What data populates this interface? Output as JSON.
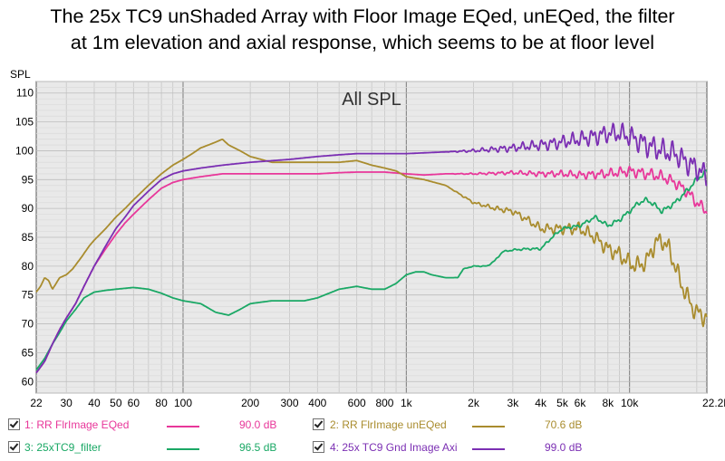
{
  "title": {
    "line1": "The 25x TC9 unShaded Array with Floor Image EQed, unEQed, the filter",
    "line2": "at 1m elevation and axial response, which seems to be at floor level"
  },
  "chart_data": {
    "type": "line",
    "overlay_title": "All SPL",
    "ylabel": "SPL",
    "xlabel": "",
    "x_scale": "log",
    "xlim": [
      22,
      22200
    ],
    "ylim": [
      58,
      112
    ],
    "grid": true,
    "y_ticks": [
      60,
      65,
      70,
      75,
      80,
      85,
      90,
      95,
      100,
      105,
      110
    ],
    "x_ticks": [
      {
        "v": 22,
        "label": "22"
      },
      {
        "v": 30,
        "label": "30"
      },
      {
        "v": 40,
        "label": "40"
      },
      {
        "v": 50,
        "label": "50"
      },
      {
        "v": 60,
        "label": "60"
      },
      {
        "v": 80,
        "label": "80"
      },
      {
        "v": 100,
        "label": "100"
      },
      {
        "v": 200,
        "label": "200"
      },
      {
        "v": 300,
        "label": "300"
      },
      {
        "v": 400,
        "label": "400"
      },
      {
        "v": 600,
        "label": "600"
      },
      {
        "v": 800,
        "label": "800"
      },
      {
        "v": 1000,
        "label": "1k"
      },
      {
        "v": 2000,
        "label": "2k"
      },
      {
        "v": 3000,
        "label": "3k"
      },
      {
        "v": 4000,
        "label": "4k"
      },
      {
        "v": 5000,
        "label": "5k"
      },
      {
        "v": 6000,
        "label": "6k"
      },
      {
        "v": 8000,
        "label": "8k"
      },
      {
        "v": 10000,
        "label": "10k"
      },
      {
        "v": 22200,
        "label": "22.2kHz"
      }
    ],
    "series": [
      {
        "name": "1: RR FlrImage EQed",
        "value_label": "90.0 dB",
        "color": "#e8379a",
        "ripple": 0.8,
        "points": [
          [
            22,
            61.5
          ],
          [
            24,
            63.5
          ],
          [
            26,
            66.5
          ],
          [
            28,
            69
          ],
          [
            30,
            71
          ],
          [
            33,
            73.5
          ],
          [
            36,
            76.5
          ],
          [
            40,
            80
          ],
          [
            45,
            83
          ],
          [
            50,
            85.5
          ],
          [
            55,
            87.5
          ],
          [
            60,
            89
          ],
          [
            70,
            91.5
          ],
          [
            80,
            93.5
          ],
          [
            90,
            94.5
          ],
          [
            100,
            95
          ],
          [
            120,
            95.5
          ],
          [
            150,
            96
          ],
          [
            200,
            96
          ],
          [
            300,
            96
          ],
          [
            400,
            96
          ],
          [
            500,
            96.2
          ],
          [
            600,
            96.3
          ],
          [
            800,
            96.3
          ],
          [
            1000,
            96
          ],
          [
            1200,
            95.8
          ],
          [
            1500,
            96
          ],
          [
            2000,
            96
          ],
          [
            3000,
            96.2
          ],
          [
            4000,
            96
          ],
          [
            5000,
            96
          ],
          [
            6000,
            95.8
          ],
          [
            8000,
            96
          ],
          [
            10000,
            96.5
          ],
          [
            12000,
            96
          ],
          [
            14000,
            95.5
          ],
          [
            16000,
            94.5
          ],
          [
            18000,
            93
          ],
          [
            20000,
            91
          ],
          [
            22200,
            89.5
          ]
        ]
      },
      {
        "name": "2: RR FlrImage unEQed",
        "value_label": "70.6 dB",
        "color": "#a98c2e",
        "ripple": 1.3,
        "points": [
          [
            22,
            75.5
          ],
          [
            23,
            76.5
          ],
          [
            24,
            78
          ],
          [
            25,
            77.5
          ],
          [
            26,
            76
          ],
          [
            27,
            77
          ],
          [
            28,
            78
          ],
          [
            30,
            78.5
          ],
          [
            32,
            79.5
          ],
          [
            35,
            81.5
          ],
          [
            38,
            83.5
          ],
          [
            40,
            84.5
          ],
          [
            45,
            86.5
          ],
          [
            50,
            88.5
          ],
          [
            55,
            90
          ],
          [
            60,
            91.5
          ],
          [
            70,
            94
          ],
          [
            80,
            96
          ],
          [
            90,
            97.5
          ],
          [
            100,
            98.5
          ],
          [
            110,
            99.5
          ],
          [
            120,
            100.5
          ],
          [
            130,
            101
          ],
          [
            140,
            101.5
          ],
          [
            150,
            102
          ],
          [
            160,
            101
          ],
          [
            180,
            100
          ],
          [
            200,
            99
          ],
          [
            250,
            98
          ],
          [
            300,
            98
          ],
          [
            400,
            98
          ],
          [
            500,
            98
          ],
          [
            600,
            98.3
          ],
          [
            700,
            97.5
          ],
          [
            800,
            97
          ],
          [
            900,
            96.5
          ],
          [
            1000,
            95.5
          ],
          [
            1200,
            95
          ],
          [
            1500,
            94
          ],
          [
            2000,
            91
          ],
          [
            2500,
            90
          ],
          [
            3000,
            89.5
          ],
          [
            3500,
            88
          ],
          [
            4000,
            86.5
          ],
          [
            5000,
            86.5
          ],
          [
            6000,
            86.5
          ],
          [
            7000,
            85
          ],
          [
            8000,
            83
          ],
          [
            9000,
            82
          ],
          [
            10000,
            80.5
          ],
          [
            11000,
            80
          ],
          [
            12000,
            81
          ],
          [
            13000,
            84
          ],
          [
            14000,
            84.5
          ],
          [
            15000,
            83
          ],
          [
            16000,
            80
          ],
          [
            17000,
            77
          ],
          [
            18000,
            75
          ],
          [
            19000,
            73
          ],
          [
            20000,
            72
          ],
          [
            22200,
            71
          ]
        ]
      },
      {
        "name": "3: 25xTC9_filter",
        "value_label": "96.5 dB",
        "color": "#1aa865",
        "ripple": 0.35,
        "points": [
          [
            22,
            62
          ],
          [
            24,
            64
          ],
          [
            26,
            66.5
          ],
          [
            28,
            68.5
          ],
          [
            30,
            70.5
          ],
          [
            33,
            72.5
          ],
          [
            36,
            74.5
          ],
          [
            40,
            75.5
          ],
          [
            45,
            75.8
          ],
          [
            50,
            76
          ],
          [
            60,
            76.3
          ],
          [
            70,
            76
          ],
          [
            80,
            75.3
          ],
          [
            90,
            74.5
          ],
          [
            100,
            74
          ],
          [
            120,
            73.5
          ],
          [
            140,
            72
          ],
          [
            160,
            71.5
          ],
          [
            180,
            72.5
          ],
          [
            200,
            73.5
          ],
          [
            250,
            74
          ],
          [
            300,
            74
          ],
          [
            350,
            74
          ],
          [
            400,
            74.5
          ],
          [
            500,
            76
          ],
          [
            600,
            76.5
          ],
          [
            700,
            76
          ],
          [
            800,
            76
          ],
          [
            900,
            77
          ],
          [
            1000,
            78.5
          ],
          [
            1100,
            79
          ],
          [
            1200,
            79
          ],
          [
            1300,
            78.5
          ],
          [
            1500,
            78
          ],
          [
            1700,
            78
          ],
          [
            1800,
            79.5
          ],
          [
            2000,
            80
          ],
          [
            2300,
            80
          ],
          [
            2500,
            81
          ],
          [
            2700,
            82.5
          ],
          [
            3000,
            82.8
          ],
          [
            3500,
            83
          ],
          [
            4000,
            83
          ],
          [
            4500,
            85
          ],
          [
            5000,
            86.5
          ],
          [
            6000,
            87
          ],
          [
            7000,
            88.5
          ],
          [
            8000,
            87
          ],
          [
            9000,
            88
          ],
          [
            10000,
            89.5
          ],
          [
            11000,
            91
          ],
          [
            12000,
            91.5
          ],
          [
            13000,
            90.5
          ],
          [
            14000,
            89.5
          ],
          [
            16000,
            91
          ],
          [
            18000,
            93
          ],
          [
            20000,
            95
          ],
          [
            22200,
            96.5
          ]
        ]
      },
      {
        "name": "4: 25x TC9 Gnd Image Axi",
        "value_label": "99.0 dB",
        "color": "#7b2fb3",
        "ripple": 1.6,
        "points": [
          [
            22,
            61.5
          ],
          [
            24,
            63.5
          ],
          [
            26,
            66.5
          ],
          [
            28,
            69
          ],
          [
            30,
            71
          ],
          [
            33,
            73.5
          ],
          [
            36,
            76.5
          ],
          [
            40,
            80
          ],
          [
            45,
            83.5
          ],
          [
            50,
            86.5
          ],
          [
            55,
            88.5
          ],
          [
            60,
            90.5
          ],
          [
            70,
            93
          ],
          [
            80,
            95
          ],
          [
            90,
            96
          ],
          [
            100,
            96.5
          ],
          [
            120,
            97
          ],
          [
            150,
            97.5
          ],
          [
            200,
            98
          ],
          [
            300,
            98.5
          ],
          [
            400,
            99
          ],
          [
            500,
            99.3
          ],
          [
            600,
            99.5
          ],
          [
            800,
            99.5
          ],
          [
            1000,
            99.5
          ],
          [
            1500,
            99.8
          ],
          [
            2000,
            100
          ],
          [
            3000,
            100.5
          ],
          [
            4000,
            101
          ],
          [
            5000,
            101.5
          ],
          [
            6000,
            102
          ],
          [
            7000,
            102.5
          ],
          [
            8000,
            103
          ],
          [
            9000,
            103
          ],
          [
            10000,
            102.5
          ],
          [
            12000,
            101
          ],
          [
            14000,
            100
          ],
          [
            16000,
            99.5
          ],
          [
            18000,
            98
          ],
          [
            20000,
            97
          ],
          [
            22200,
            95.5
          ]
        ]
      }
    ]
  },
  "legend": [
    {
      "label": "1: RR FlrImage EQed",
      "value": "90.0 dB",
      "color": "#e8379a",
      "checked": true
    },
    {
      "label": "2: RR FlrImage unEQed",
      "value": "70.6 dB",
      "color": "#a98c2e",
      "checked": true
    },
    {
      "label": "3: 25xTC9_filter",
      "value": "96.5 dB",
      "color": "#1aa865",
      "checked": true
    },
    {
      "label": "4: 25x TC9 Gnd Image Axi",
      "value": "99.0 dB",
      "color": "#7b2fb3",
      "checked": true
    }
  ]
}
